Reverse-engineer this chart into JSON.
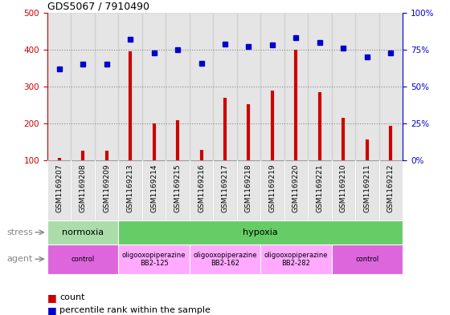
{
  "title": "GDS5067 / 7910490",
  "samples": [
    "GSM1169207",
    "GSM1169208",
    "GSM1169209",
    "GSM1169213",
    "GSM1169214",
    "GSM1169215",
    "GSM1169216",
    "GSM1169217",
    "GSM1169218",
    "GSM1169219",
    "GSM1169220",
    "GSM1169221",
    "GSM1169210",
    "GSM1169211",
    "GSM1169212"
  ],
  "counts": [
    107,
    128,
    128,
    396,
    200,
    210,
    130,
    270,
    252,
    290,
    400,
    285,
    215,
    157,
    193
  ],
  "percentiles": [
    62,
    65,
    65,
    82,
    73,
    75,
    66,
    79,
    77,
    78,
    83,
    80,
    76,
    70,
    73
  ],
  "ylim_left": [
    100,
    500
  ],
  "ylim_right": [
    0,
    100
  ],
  "yticks_left": [
    100,
    200,
    300,
    400,
    500
  ],
  "yticks_right": [
    0,
    25,
    50,
    75,
    100
  ],
  "bar_color": "#cc0000",
  "dot_color": "#0000cc",
  "stress_groups": [
    {
      "label": "normoxia",
      "start": 0,
      "end": 3,
      "color": "#aaddaa"
    },
    {
      "label": "hypoxia",
      "start": 3,
      "end": 15,
      "color": "#66cc66"
    }
  ],
  "agent_groups": [
    {
      "label": "control",
      "start": 0,
      "end": 3,
      "color": "#dd66dd"
    },
    {
      "label": "oligooxopiperazine\nBB2-125",
      "start": 3,
      "end": 6,
      "color": "#ffaaff"
    },
    {
      "label": "oligooxopiperazine\nBB2-162",
      "start": 6,
      "end": 9,
      "color": "#ffaaff"
    },
    {
      "label": "oligooxopiperazine\nBB2-282",
      "start": 9,
      "end": 12,
      "color": "#ffaaff"
    },
    {
      "label": "control",
      "start": 12,
      "end": 15,
      "color": "#dd66dd"
    }
  ],
  "stress_label": "stress",
  "agent_label": "agent",
  "legend_count": "count",
  "legend_percentile": "percentile rank within the sample",
  "background_color": "#ffffff",
  "col_bg_color": "#cccccc",
  "grid_color": "#888888",
  "border_color": "#000000"
}
